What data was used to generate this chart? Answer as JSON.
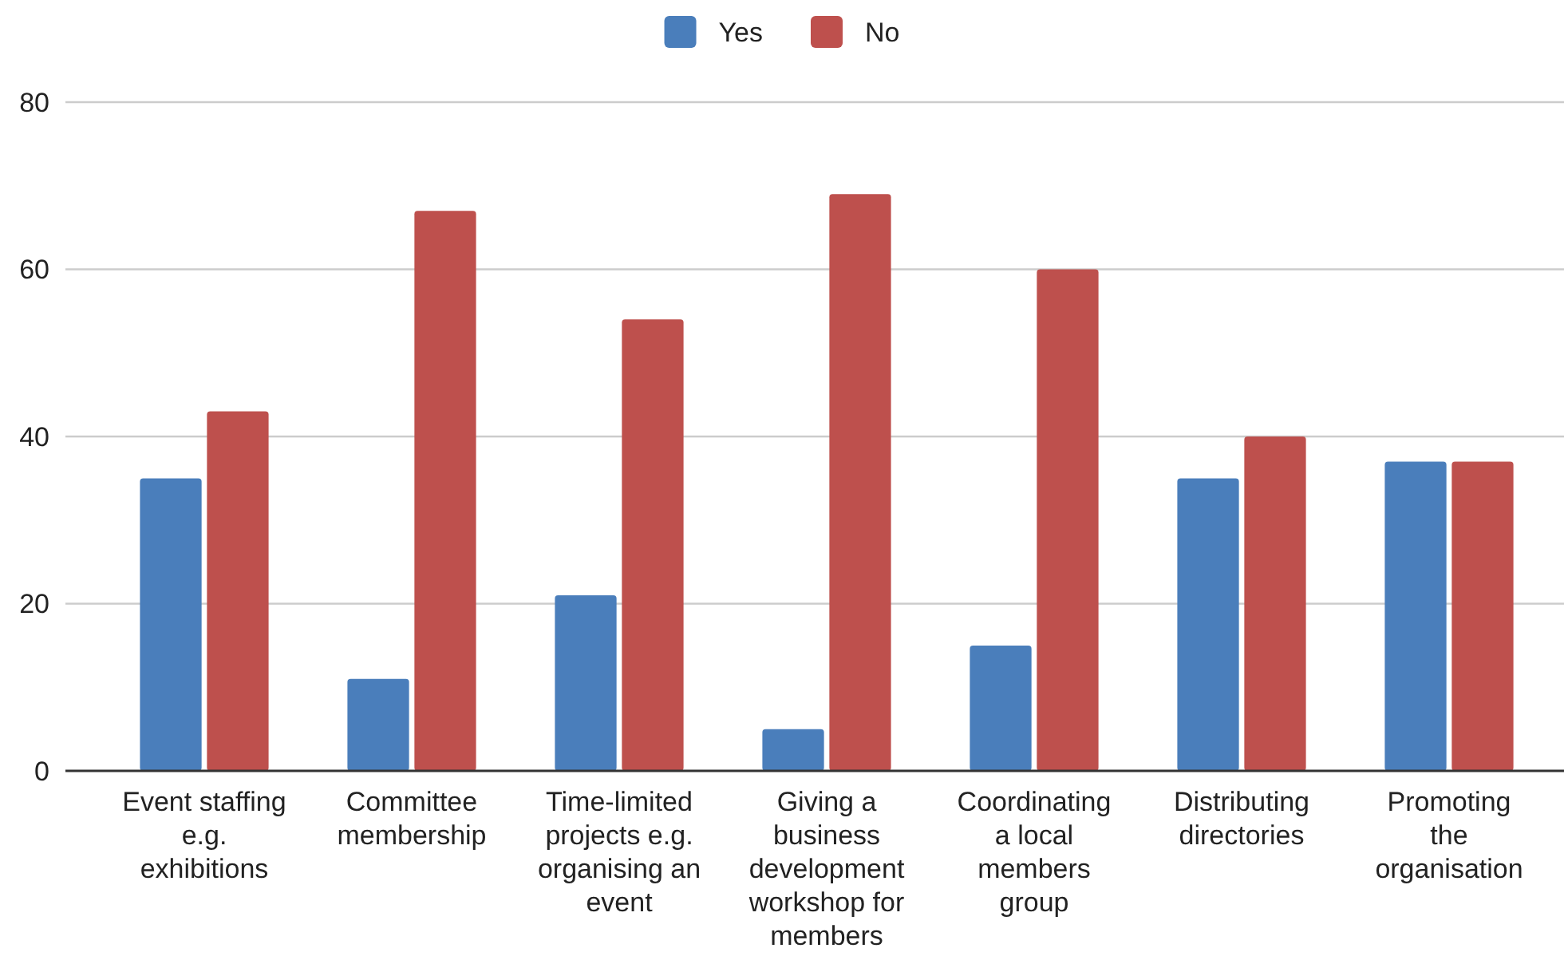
{
  "chart_data": {
    "type": "bar",
    "categories": [
      "Event staffing e.g. exhibitions",
      "Committee membership",
      "Time-limited projects e.g. organising an event",
      "Giving a business development workshop for members",
      "Coordinating a local members group",
      "Distributing directories",
      "Promoting the organisation"
    ],
    "series": [
      {
        "name": "Yes",
        "color": "#4a7ebb",
        "values": [
          35,
          11,
          21,
          5,
          15,
          35,
          37
        ]
      },
      {
        "name": "No",
        "color": "#be504d",
        "values": [
          43,
          67,
          54,
          69,
          60,
          40,
          37
        ]
      }
    ],
    "ylim": [
      0,
      80
    ],
    "yticks": [
      0,
      20,
      40,
      60,
      80
    ],
    "grid": "y",
    "legend": "top"
  }
}
